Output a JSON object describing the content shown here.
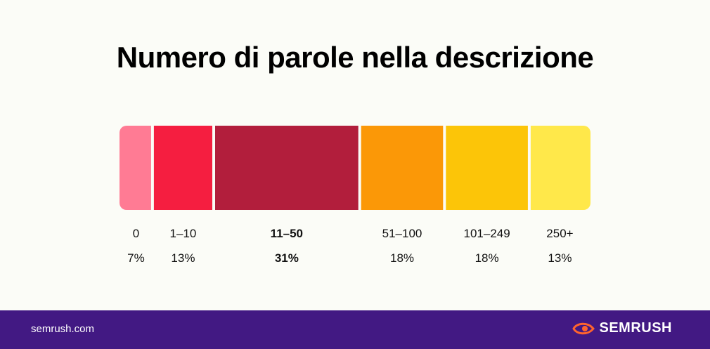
{
  "title": "Numero di parole nella descrizione",
  "footer": {
    "url": "semrush.com",
    "brand": "SEMRUSH"
  },
  "colors": {
    "background": "#fbfcf7",
    "footer": "#421983",
    "brand_orange": "#ff642d"
  },
  "chart_data": {
    "type": "bar",
    "orientation": "horizontal-stacked",
    "title": "Numero di parole nella descrizione",
    "categories": [
      "0",
      "1–10",
      "11–50",
      "51–100",
      "101–249",
      "250+"
    ],
    "values": [
      7,
      13,
      31,
      18,
      18,
      13
    ],
    "labels": [
      "7%",
      "13%",
      "31%",
      "18%",
      "18%",
      "13%"
    ],
    "unit": "%",
    "highlight": "11–50",
    "colors": [
      "#ff7b94",
      "#f51e40",
      "#b21e3c",
      "#fb9807",
      "#fcc508",
      "#ffe84a"
    ]
  }
}
